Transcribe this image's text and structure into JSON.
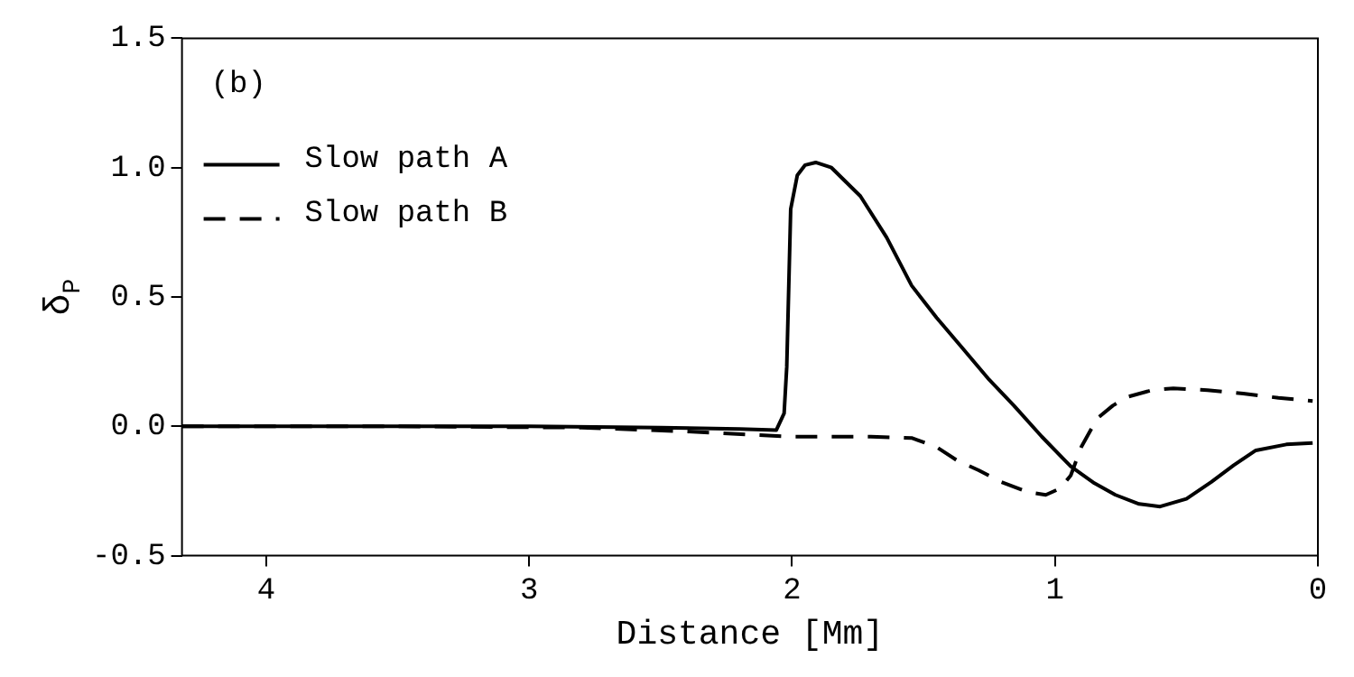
{
  "chart_data": {
    "type": "line",
    "xlabel": "Distance [Mm]",
    "ylabel": "δ$_{P}$",
    "annotations": [
      "(b)"
    ],
    "xlim": [
      4.32,
      0
    ],
    "xticks": [
      4,
      3,
      2,
      1,
      0
    ],
    "ylim": [
      -0.5,
      1.5
    ],
    "yticks": [
      {
        "value": -0.5,
        "label": "-0.5"
      },
      {
        "value": 0,
        "label": "0.0"
      },
      {
        "value": 0.5,
        "label": "0.5"
      },
      {
        "value": 1,
        "label": "1.0"
      },
      {
        "value": 1.5,
        "label": "1.5"
      }
    ],
    "grid": false,
    "legend": "top left",
    "marker": "none",
    "series": [
      {
        "name": "Slow path A",
        "color": "#000000",
        "line_style": "solid",
        "x": [
          4.32,
          3.5,
          3.0,
          2.5,
          2.2,
          2.06,
          2.03,
          2.02,
          2.005,
          1.98,
          1.95,
          1.91,
          1.85,
          1.74,
          1.64,
          1.545,
          1.45,
          1.35,
          1.25,
          1.156,
          1.05,
          0.94,
          0.85,
          0.77,
          0.68,
          0.6,
          0.5,
          0.405,
          0.32,
          0.236,
          0.12,
          0.02
        ],
        "values": [
          0,
          0,
          0,
          -0.005,
          -0.01,
          -0.015,
          0.05,
          0.23,
          0.84,
          0.97,
          1.01,
          1.02,
          1.0,
          0.89,
          0.73,
          0.544,
          0.42,
          0.3,
          0.18,
          0.08,
          -0.04,
          -0.155,
          -0.22,
          -0.265,
          -0.3,
          -0.31,
          -0.28,
          -0.215,
          -0.15,
          -0.093,
          -0.07,
          -0.064
        ]
      },
      {
        "name": "Slow path B",
        "color": "#000000",
        "line_style": "dashed",
        "x": [
          4.32,
          3.5,
          2.8,
          2.4,
          2.0,
          1.7,
          1.545,
          1.45,
          1.375,
          1.29,
          1.205,
          1.1,
          1.035,
          0.98,
          0.94,
          0.9,
          0.84,
          0.78,
          0.72,
          0.63,
          0.55,
          0.42,
          0.284,
          0.15,
          0.02
        ],
        "values": [
          0,
          0,
          -0.005,
          -0.02,
          -0.04,
          -0.04,
          -0.045,
          -0.08,
          -0.13,
          -0.17,
          -0.215,
          -0.255,
          -0.265,
          -0.24,
          -0.19,
          -0.08,
          0.03,
          0.08,
          0.115,
          0.14,
          0.147,
          0.14,
          0.127,
          0.11,
          0.098
        ]
      }
    ]
  }
}
